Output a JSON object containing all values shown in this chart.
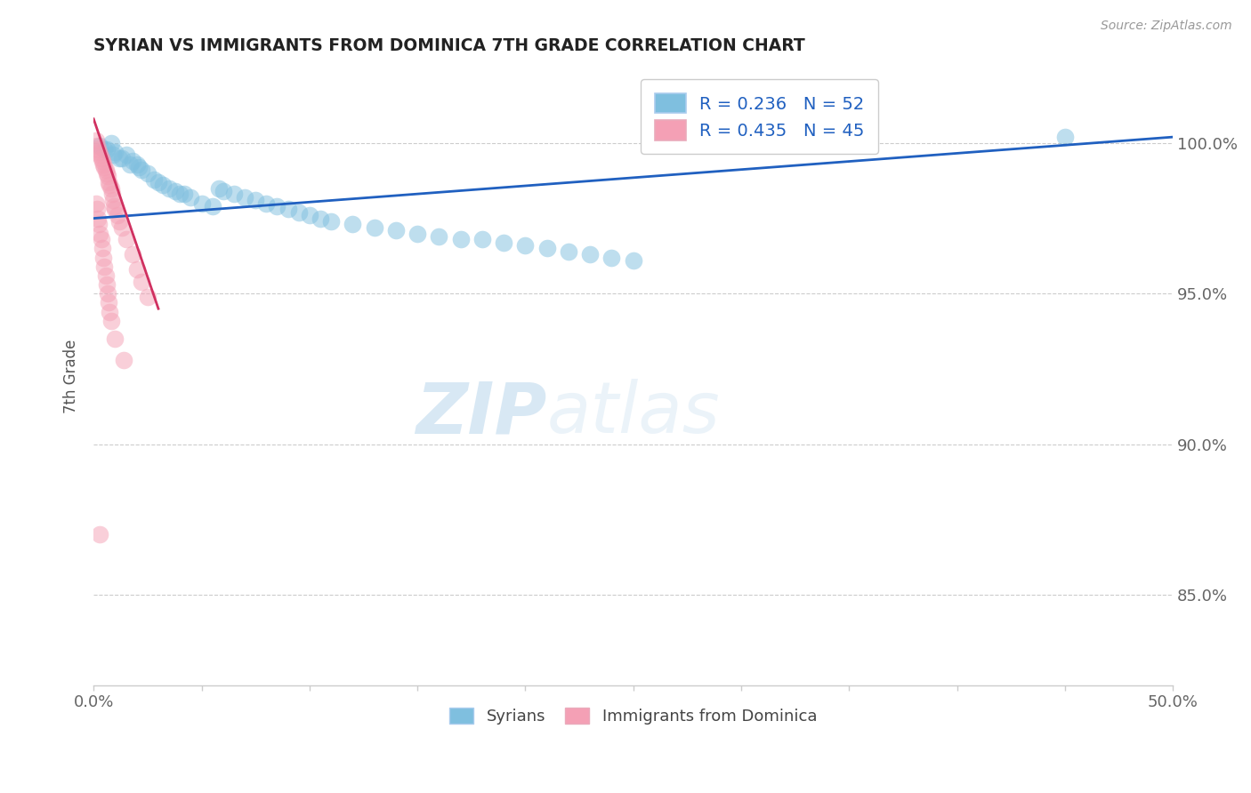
{
  "title": "SYRIAN VS IMMIGRANTS FROM DOMINICA 7TH GRADE CORRELATION CHART",
  "source": "Source: ZipAtlas.com",
  "ylabel": "7th Grade",
  "xlim": [
    0.0,
    50.0
  ],
  "ylim": [
    82.0,
    102.5
  ],
  "yticks": [
    85.0,
    90.0,
    95.0,
    100.0
  ],
  "yticklabels": [
    "85.0%",
    "90.0%",
    "95.0%",
    "100.0%"
  ],
  "legend1_label": "R = 0.236   N = 52",
  "legend2_label": "R = 0.435   N = 45",
  "bottom_legend1": "Syrians",
  "bottom_legend2": "Immigrants from Dominica",
  "blue_color": "#7fbfdf",
  "pink_color": "#f4a0b5",
  "trend_blue": "#2060c0",
  "trend_pink": "#d03060",
  "watermark_zip": "ZIP",
  "watermark_atlas": "atlas",
  "blue_points_x": [
    0.5,
    0.8,
    1.0,
    1.2,
    1.5,
    1.8,
    2.0,
    2.2,
    2.5,
    2.8,
    3.0,
    3.2,
    3.5,
    3.8,
    4.0,
    4.2,
    4.5,
    5.0,
    5.5,
    5.8,
    6.0,
    6.5,
    7.0,
    7.5,
    8.0,
    8.5,
    9.0,
    9.5,
    10.0,
    10.5,
    11.0,
    12.0,
    13.0,
    14.0,
    15.0,
    16.0,
    17.0,
    18.0,
    19.0,
    20.0,
    21.0,
    22.0,
    23.0,
    24.0,
    25.0,
    0.3,
    0.6,
    0.9,
    1.3,
    1.7,
    2.1,
    45.0
  ],
  "blue_points_y": [
    99.8,
    100.0,
    99.7,
    99.5,
    99.6,
    99.4,
    99.3,
    99.1,
    99.0,
    98.8,
    98.7,
    98.6,
    98.5,
    98.4,
    98.3,
    98.3,
    98.2,
    98.0,
    97.9,
    98.5,
    98.4,
    98.3,
    98.2,
    98.1,
    98.0,
    97.9,
    97.8,
    97.7,
    97.6,
    97.5,
    97.4,
    97.3,
    97.2,
    97.1,
    97.0,
    96.9,
    96.8,
    96.8,
    96.7,
    96.6,
    96.5,
    96.4,
    96.3,
    96.2,
    96.1,
    99.9,
    99.8,
    99.6,
    99.5,
    99.3,
    99.2,
    100.2
  ],
  "pink_points_x": [
    0.1,
    0.15,
    0.2,
    0.25,
    0.3,
    0.35,
    0.4,
    0.45,
    0.5,
    0.55,
    0.6,
    0.65,
    0.7,
    0.75,
    0.8,
    0.85,
    0.9,
    0.95,
    1.0,
    1.1,
    1.2,
    1.3,
    1.5,
    1.8,
    2.0,
    2.2,
    2.5,
    0.1,
    0.15,
    0.2,
    0.25,
    0.3,
    0.35,
    0.4,
    0.45,
    0.5,
    0.55,
    0.6,
    0.65,
    0.7,
    0.75,
    0.8,
    1.0,
    1.4,
    0.3
  ],
  "pink_points_y": [
    100.1,
    99.9,
    99.8,
    99.7,
    99.6,
    99.5,
    99.4,
    99.3,
    99.2,
    99.1,
    99.0,
    98.9,
    98.7,
    98.6,
    98.5,
    98.3,
    98.1,
    97.9,
    97.8,
    97.6,
    97.4,
    97.2,
    96.8,
    96.3,
    95.8,
    95.4,
    94.9,
    98.0,
    97.8,
    97.5,
    97.3,
    97.0,
    96.8,
    96.5,
    96.2,
    95.9,
    95.6,
    95.3,
    95.0,
    94.7,
    94.4,
    94.1,
    93.5,
    92.8,
    87.0
  ],
  "blue_trend_x": [
    0.0,
    50.0
  ],
  "blue_trend_y": [
    97.5,
    100.2
  ],
  "pink_trend_x": [
    0.0,
    3.0
  ],
  "pink_trend_y": [
    100.8,
    94.5
  ]
}
